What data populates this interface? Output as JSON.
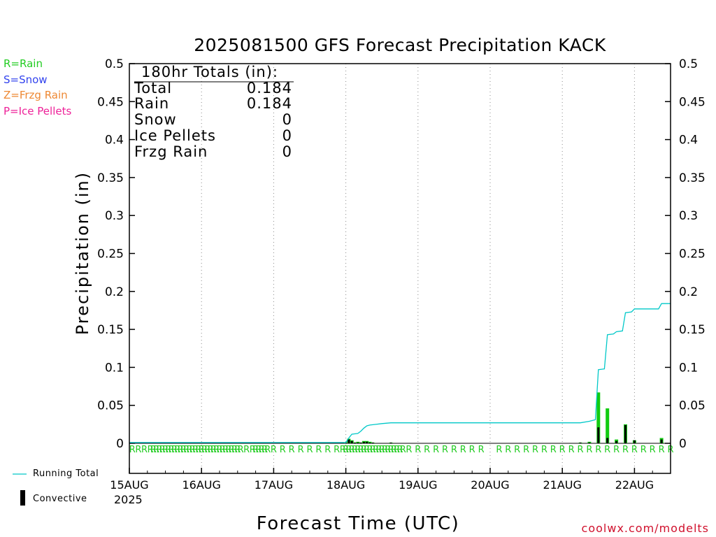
{
  "chart_data": {
    "type": "bar",
    "title": "2025081500 GFS Forecast Precipitation KACK",
    "xlabel": "Forecast Time (UTC)",
    "ylabel": "Precipitation (in)",
    "ylim": [
      0,
      0.5
    ],
    "yticks": [
      "0",
      "0.05",
      "0.1",
      "0.15",
      "0.2",
      "0.25",
      "0.3",
      "0.35",
      "0.4",
      "0.45",
      "0.5"
    ],
    "xlim_hours": [
      0,
      180
    ],
    "xticks": [
      {
        "hour": 0,
        "label": "15AUG"
      },
      {
        "hour": 24,
        "label": "16AUG"
      },
      {
        "hour": 48,
        "label": "17AUG"
      },
      {
        "hour": 72,
        "label": "18AUG"
      },
      {
        "hour": 96,
        "label": "19AUG"
      },
      {
        "hour": 120,
        "label": "20AUG"
      },
      {
        "hour": 144,
        "label": "21AUG"
      },
      {
        "hour": 168,
        "label": "22AUG"
      }
    ],
    "year_label": "2025",
    "grid": "vertical dotted",
    "precip_type_legend": [
      {
        "text": "R=Rain",
        "color": "#22cc22"
      },
      {
        "text": "S=Snow",
        "color": "#3344ee"
      },
      {
        "text": "Z=Frzg Rain",
        "color": "#ee8833"
      },
      {
        "text": "P=Ice Pellets",
        "color": "#ee2299"
      }
    ],
    "series_legend": [
      {
        "name": "Running Total",
        "color": "#00c8c8"
      },
      {
        "name": "Convective",
        "color": "#000000"
      }
    ],
    "totals": {
      "header": "180hr Totals (in):",
      "rows": [
        {
          "label": "Total",
          "value": "0.184"
        },
        {
          "label": "Rain",
          "value": "0.184"
        },
        {
          "label": "Snow",
          "value": "0"
        },
        {
          "label": "Ice Pellets",
          "value": "0"
        },
        {
          "label": "Frzg Rain",
          "value": "0"
        }
      ]
    },
    "precip_bars": [
      {
        "hour": 72.0,
        "total": 0.001,
        "convective": 0.001
      },
      {
        "hour": 73.0,
        "total": 0.006,
        "convective": 0.005
      },
      {
        "hour": 74.0,
        "total": 0.004,
        "convective": 0.003
      },
      {
        "hour": 75.0,
        "total": 0.001,
        "convective": 0.001
      },
      {
        "hour": 76.0,
        "total": 0.002,
        "convective": 0.001
      },
      {
        "hour": 77.0,
        "total": 0.001,
        "convective": 0.001
      },
      {
        "hour": 78.0,
        "total": 0.003,
        "convective": 0.002
      },
      {
        "hour": 79.0,
        "total": 0.003,
        "convective": 0.002
      },
      {
        "hour": 80.0,
        "total": 0.002,
        "convective": 0.001
      },
      {
        "hour": 81.0,
        "total": 0.001,
        "convective": 0.001
      },
      {
        "hour": 87.0,
        "total": 0.001,
        "convective": 0.001
      },
      {
        "hour": 150.0,
        "total": 0.001,
        "convective": 0.001
      },
      {
        "hour": 153.0,
        "total": 0.002,
        "convective": 0.001
      },
      {
        "hour": 156.0,
        "total": 0.067,
        "convective": 0.021
      },
      {
        "hour": 159.0,
        "total": 0.046,
        "convective": 0.007
      },
      {
        "hour": 162.0,
        "total": 0.005,
        "convective": 0.003
      },
      {
        "hour": 165.0,
        "total": 0.025,
        "convective": 0.024
      },
      {
        "hour": 168.0,
        "total": 0.004,
        "convective": 0.004
      },
      {
        "hour": 177.0,
        "total": 0.007,
        "convective": 0.005
      }
    ],
    "running_total": [
      {
        "hour": 0,
        "value": 0.001
      },
      {
        "hour": 72,
        "value": 0.001
      },
      {
        "hour": 73,
        "value": 0.007
      },
      {
        "hour": 74,
        "value": 0.012
      },
      {
        "hour": 76,
        "value": 0.013
      },
      {
        "hour": 77,
        "value": 0.016
      },
      {
        "hour": 78,
        "value": 0.02
      },
      {
        "hour": 79,
        "value": 0.023
      },
      {
        "hour": 80,
        "value": 0.024
      },
      {
        "hour": 82,
        "value": 0.025
      },
      {
        "hour": 84,
        "value": 0.026
      },
      {
        "hour": 87,
        "value": 0.027
      },
      {
        "hour": 150,
        "value": 0.027
      },
      {
        "hour": 153,
        "value": 0.029
      },
      {
        "hour": 155,
        "value": 0.031
      },
      {
        "hour": 156,
        "value": 0.097
      },
      {
        "hour": 158,
        "value": 0.098
      },
      {
        "hour": 159,
        "value": 0.143
      },
      {
        "hour": 161,
        "value": 0.144
      },
      {
        "hour": 162,
        "value": 0.147
      },
      {
        "hour": 164,
        "value": 0.148
      },
      {
        "hour": 165,
        "value": 0.172
      },
      {
        "hour": 167,
        "value": 0.173
      },
      {
        "hour": 168,
        "value": 0.177
      },
      {
        "hour": 176,
        "value": 0.177
      },
      {
        "hour": 177,
        "value": 0.184
      },
      {
        "hour": 180,
        "value": 0.184
      }
    ],
    "rain_type_hours": [
      1,
      3,
      5,
      7,
      8,
      9,
      10,
      11,
      12,
      13,
      14,
      15,
      16,
      17,
      18,
      19,
      20,
      21,
      22,
      23,
      24,
      25,
      26,
      27,
      28,
      29,
      30,
      31,
      32,
      33,
      34,
      35,
      36,
      37,
      39,
      41,
      42,
      43,
      44,
      45,
      46,
      48,
      51,
      54,
      57,
      60,
      63,
      66,
      69,
      71,
      72,
      73,
      74,
      75,
      76,
      77,
      78,
      79,
      80,
      81,
      82,
      83,
      84,
      85,
      86,
      87,
      88,
      89,
      90,
      91,
      93,
      96,
      99,
      102,
      105,
      108,
      111,
      114,
      117,
      123,
      126,
      129,
      132,
      135,
      138,
      141,
      144,
      147,
      150,
      153,
      156,
      159,
      162,
      165,
      168,
      171,
      174,
      177,
      180
    ],
    "rain_type_letter": "R"
  },
  "branding": {
    "site": "coolwx.com/modelts"
  }
}
